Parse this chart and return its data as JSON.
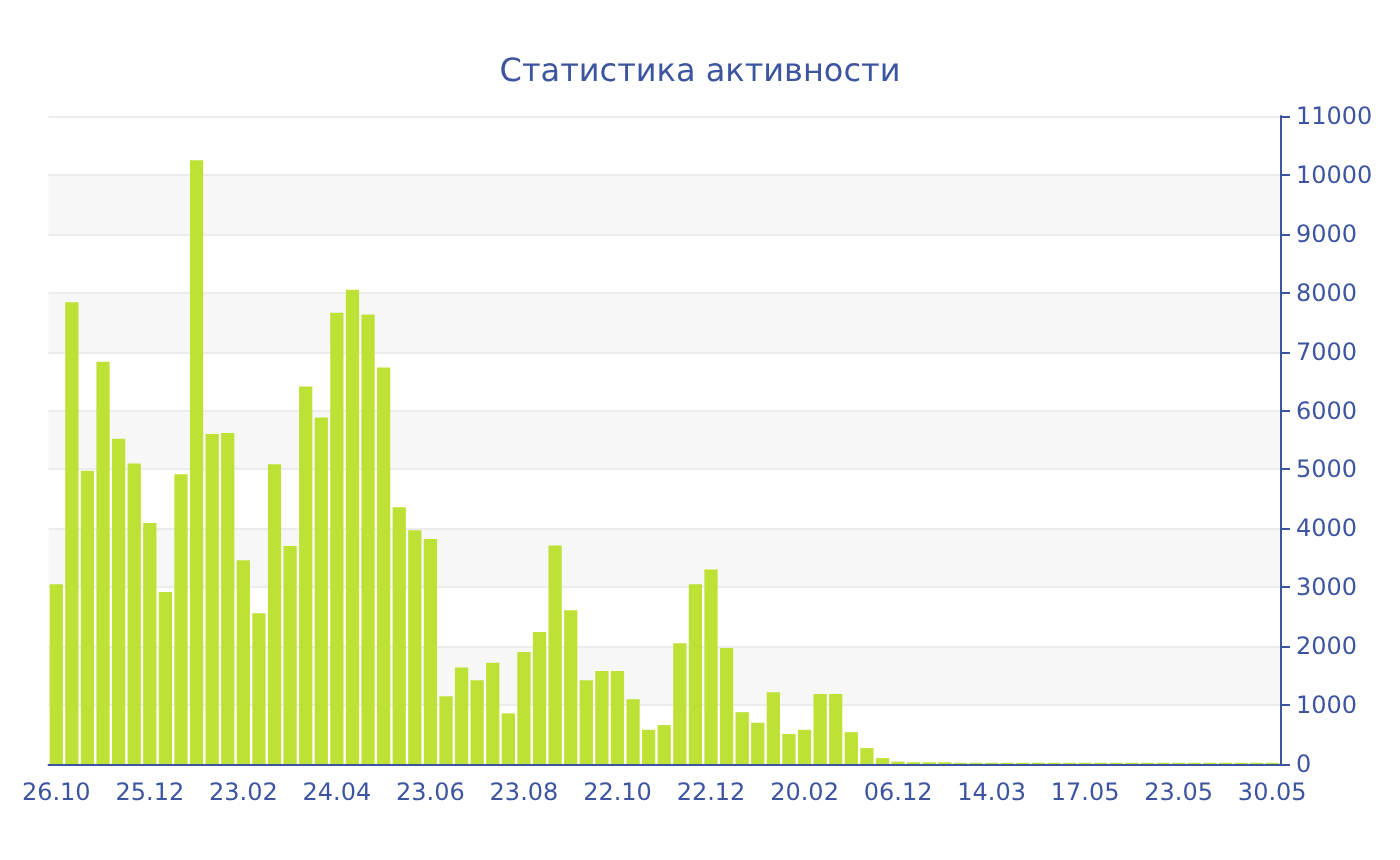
{
  "chart_data": {
    "type": "bar",
    "title": "Статистика активности",
    "categories": [
      "26.10",
      null,
      null,
      null,
      null,
      null,
      "25.12",
      null,
      null,
      null,
      null,
      null,
      "23.02",
      null,
      null,
      null,
      null,
      null,
      "24.04",
      null,
      null,
      null,
      null,
      null,
      "23.06",
      null,
      null,
      null,
      null,
      null,
      "23.08",
      null,
      null,
      null,
      null,
      null,
      "22.10",
      null,
      null,
      null,
      null,
      null,
      "22.12",
      null,
      null,
      null,
      null,
      null,
      "20.02",
      null,
      null,
      null,
      null,
      null,
      "06.12",
      null,
      null,
      null,
      null,
      null,
      "14.03",
      null,
      null,
      null,
      null,
      null,
      "17.05",
      null,
      null,
      null,
      null,
      null,
      "23.05",
      null,
      null,
      null,
      null,
      null,
      "30.05"
    ],
    "values": [
      3050,
      7840,
      4980,
      6830,
      5520,
      5100,
      4090,
      2920,
      4920,
      10250,
      5600,
      5620,
      3460,
      2560,
      5090,
      3700,
      6410,
      5880,
      7660,
      8050,
      7630,
      6730,
      4360,
      3970,
      3820,
      1150,
      1640,
      1420,
      1720,
      860,
      1900,
      2240,
      3710,
      2610,
      1420,
      1580,
      1580,
      1100,
      580,
      660,
      2050,
      3050,
      3300,
      1970,
      880,
      700,
      1220,
      510,
      580,
      1190,
      1190,
      540,
      270,
      100,
      40,
      30,
      30,
      30,
      20,
      20,
      20,
      20,
      20,
      20,
      20,
      20,
      20,
      20,
      20,
      20,
      20,
      20,
      20,
      20,
      20,
      20,
      20,
      20,
      20
    ],
    "color": "#bde134",
    "ylim": [
      0,
      11000
    ],
    "yticks": [
      0,
      1000,
      2000,
      3000,
      4000,
      5000,
      6000,
      7000,
      8000,
      9000,
      10000,
      11000
    ],
    "grid": "y"
  }
}
